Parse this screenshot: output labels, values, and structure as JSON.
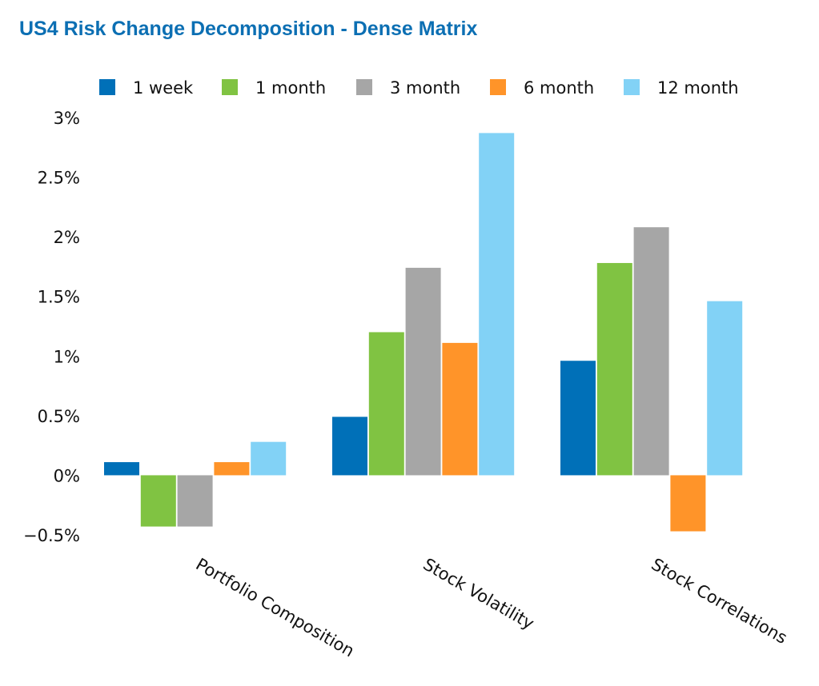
{
  "chart_data": {
    "type": "bar",
    "title": "US4 Risk Change Decomposition - Dense Matrix",
    "xlabel": "",
    "ylabel": "",
    "categories": [
      "Portfolio Composition",
      "Stock Volatility",
      "Stock Correlations"
    ],
    "series": [
      {
        "name": "1 week",
        "color": "#0070b8",
        "values": [
          0.11,
          0.49,
          0.96
        ]
      },
      {
        "name": "1 month",
        "color": "#80c342",
        "values": [
          -0.43,
          1.2,
          1.78
        ]
      },
      {
        "name": "3 month",
        "color": "#a6a6a6",
        "values": [
          -0.43,
          1.74,
          2.08
        ]
      },
      {
        "name": "6 month",
        "color": "#ff9429",
        "values": [
          0.11,
          1.11,
          -0.47
        ]
      },
      {
        "name": "12 month",
        "color": "#82d2f6",
        "values": [
          0.28,
          2.87,
          1.46
        ]
      }
    ],
    "ylim": [
      -0.5,
      3
    ],
    "yticks": [
      {
        "value": -0.5,
        "label": "−0.5%"
      },
      {
        "value": 0,
        "label": "0%"
      },
      {
        "value": 0.5,
        "label": "0.5%"
      },
      {
        "value": 1,
        "label": "1%"
      },
      {
        "value": 1.5,
        "label": "1.5%"
      },
      {
        "value": 2,
        "label": "2%"
      },
      {
        "value": 2.5,
        "label": "2.5%"
      },
      {
        "value": 3,
        "label": "3%"
      }
    ],
    "grid": false,
    "legend_position": "top"
  }
}
